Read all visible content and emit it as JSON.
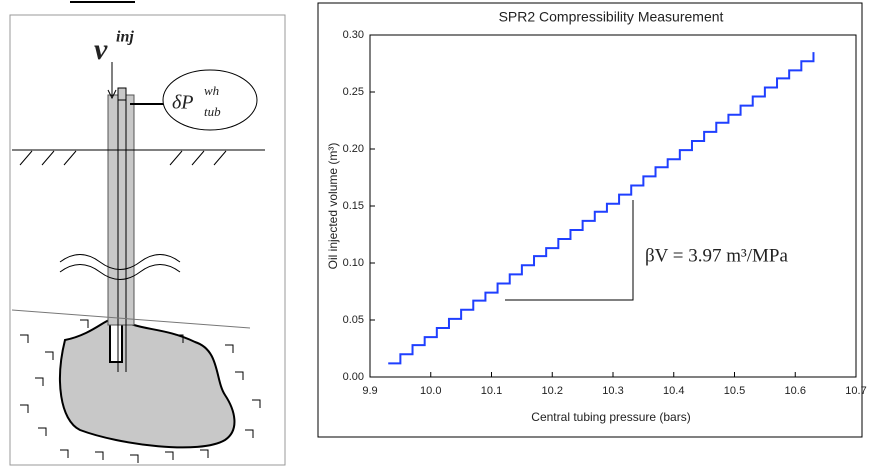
{
  "diagram": {
    "inj_label": "v",
    "inj_sup": "inj",
    "pressure_label": "δP",
    "pressure_sup": "wh",
    "pressure_sub": "tub"
  },
  "chart_data": {
    "type": "line",
    "title": "SPR2 Compressibility Measurement",
    "x_label": "Central tubing pressure (bars)",
    "y_label": "Oil injected volume (m³)",
    "annotation": "βV = 3.97 m³/MPa",
    "x": [
      9.93,
      9.95,
      9.97,
      9.99,
      10.01,
      10.03,
      10.05,
      10.07,
      10.09,
      10.11,
      10.13,
      10.15,
      10.17,
      10.19,
      10.21,
      10.23,
      10.25,
      10.27,
      10.29,
      10.31,
      10.33,
      10.35,
      10.37,
      10.39,
      10.41,
      10.43,
      10.45,
      10.47,
      10.49,
      10.51,
      10.53,
      10.55,
      10.57,
      10.59,
      10.61,
      10.63
    ],
    "series": [
      {
        "color": "#1f3fff",
        "values": [
          0.012,
          0.02,
          0.028,
          0.035,
          0.043,
          0.051,
          0.059,
          0.067,
          0.074,
          0.082,
          0.09,
          0.098,
          0.106,
          0.113,
          0.121,
          0.129,
          0.137,
          0.145,
          0.152,
          0.16,
          0.168,
          0.176,
          0.184,
          0.191,
          0.199,
          0.207,
          0.215,
          0.223,
          0.23,
          0.238,
          0.246,
          0.254,
          0.262,
          0.269,
          0.277,
          0.285
        ]
      }
    ],
    "step": true,
    "xlim": [
      9.9,
      10.7
    ],
    "xticks": [
      9.9,
      {
        "value": 10.0,
        "label": "10.0"
      },
      10.1,
      10.2,
      10.3,
      10.4,
      10.5,
      10.6,
      10.7
    ],
    "ylim": [
      0,
      0.3
    ],
    "yticks": [
      {
        "value": 0,
        "label": "0.00"
      },
      0.05,
      {
        "value": 0.1,
        "label": "0.10"
      },
      0.15,
      {
        "value": 0.2,
        "label": "0.20"
      },
      0.25,
      {
        "value": 0.3,
        "label": "0.30"
      }
    ]
  }
}
